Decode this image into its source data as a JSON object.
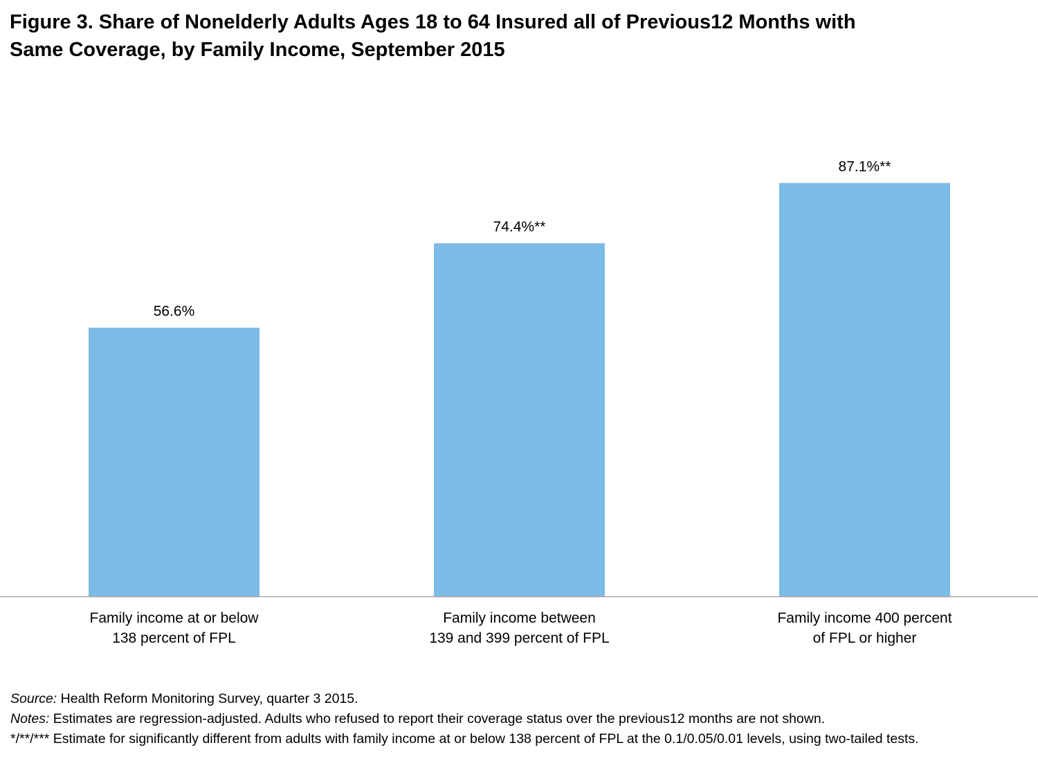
{
  "chart_data": {
    "type": "bar",
    "title_line1": "Figure 3.  Share of Nonelderly Adults Ages 18 to 64 Insured all of Previous12 Months with",
    "title_line2": "Same Coverage, by Family Income, September  2015",
    "categories": [
      [
        "Family income at or below",
        "138 percent of FPL"
      ],
      [
        "Family income between",
        "139 and 399 percent of FPL"
      ],
      [
        "Family income 400 percent",
        "of FPL or higher"
      ]
    ],
    "values": [
      56.6,
      74.4,
      87.1
    ],
    "data_labels": [
      "56.6%",
      "74.4%**",
      "87.1%**"
    ],
    "bar_color": "#7bbbe5",
    "axis_color": "#a6a6a6",
    "ylim": [
      0,
      100
    ],
    "grid": false,
    "legend": "none"
  },
  "notes": {
    "source_lead": "Source:",
    "source_text": " Health Reform Monitoring Survey,  quarter 3 2015.",
    "notes_lead": "Notes:",
    "notes_text": " Estimates are regression-adjusted. Adults who refused to report their coverage status over the previous12 months are not shown.",
    "significance_text": "*/**/***  Estimate for significantly different from adults with family income at or below 138 percent of FPL at the 0.1/0.05/0.01 levels, using two-tailed tests."
  }
}
